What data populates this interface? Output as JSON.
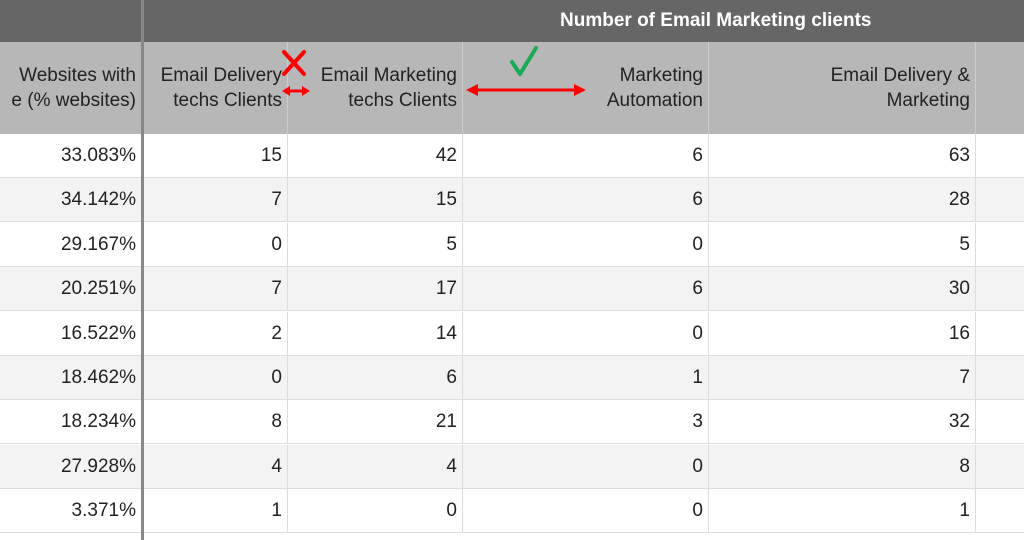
{
  "sheet": {
    "group_header": "Number of Email Marketing clients",
    "columns": [
      {
        "key": "pct",
        "label": "Websites with\ne (% websites)"
      },
      {
        "key": "delivery",
        "label": "Email Delivery\ntechs Clients"
      },
      {
        "key": "marketing",
        "label": "Email Marketing\ntechs Clients"
      },
      {
        "key": "automation",
        "label": "Marketing\nAutomation"
      },
      {
        "key": "delivery_marketing",
        "label": "Email Delivery &\nMarketing"
      }
    ],
    "rows": [
      [
        "33.083%",
        "15",
        "42",
        "6",
        "63"
      ],
      [
        "34.142%",
        "7",
        "15",
        "6",
        "28"
      ],
      [
        "29.167%",
        "0",
        "5",
        "0",
        "5"
      ],
      [
        "20.251%",
        "7",
        "17",
        "6",
        "30"
      ],
      [
        "16.522%",
        "2",
        "14",
        "0",
        "16"
      ],
      [
        "18.462%",
        "0",
        "6",
        "1",
        "7"
      ],
      [
        "18.234%",
        "8",
        "21",
        "3",
        "32"
      ],
      [
        "27.928%",
        "4",
        "4",
        "0",
        "8"
      ],
      [
        "3.371%",
        "1",
        "0",
        "0",
        "1"
      ]
    ]
  },
  "annotations": {
    "cross_color": "#ff0000",
    "check_color": "#1aaa55",
    "arrow_color": "#ff0000"
  }
}
